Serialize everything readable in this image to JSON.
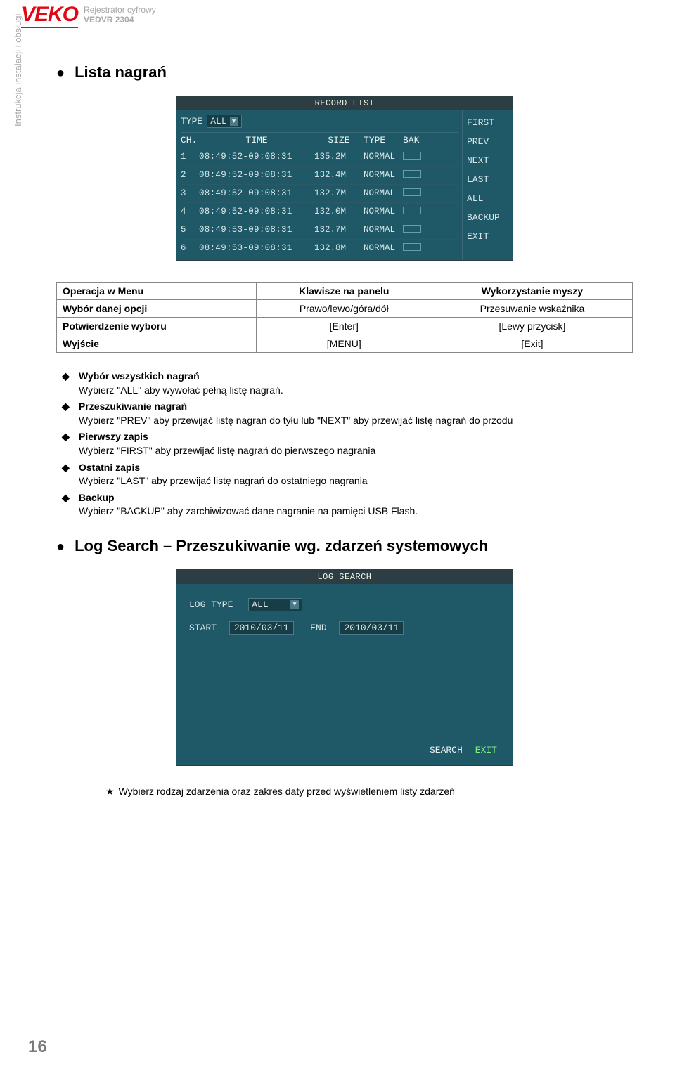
{
  "header": {
    "logo": "VEKO",
    "subtitle": "Rejestrator cyfrowy",
    "model": "VEDVR 2304"
  },
  "sidebar_text": "Instrukcja instalacji i obsługi",
  "section1": {
    "title": "Lista nagrań"
  },
  "record_list": {
    "panel_title": "RECORD LIST",
    "type_label": "TYPE",
    "type_value": "ALL",
    "headers": {
      "ch": "CH.",
      "time": "TIME",
      "size": "SIZE",
      "type": "TYPE",
      "bak": "BAK"
    },
    "rows": [
      {
        "ch": "1",
        "time": "08:49:52-09:08:31",
        "size": "135.2M",
        "type": "NORMAL"
      },
      {
        "ch": "2",
        "time": "08:49:52-09:08:31",
        "size": "132.4M",
        "type": "NORMAL"
      },
      {
        "ch": "3",
        "time": "08:49:52-09:08:31",
        "size": "132.7M",
        "type": "NORMAL"
      },
      {
        "ch": "4",
        "time": "08:49:52-09:08:31",
        "size": "132.0M",
        "type": "NORMAL"
      },
      {
        "ch": "5",
        "time": "08:49:53-09:08:31",
        "size": "132.7M",
        "type": "NORMAL"
      },
      {
        "ch": "6",
        "time": "08:49:53-09:08:31",
        "size": "132.8M",
        "type": "NORMAL"
      }
    ],
    "side": [
      "FIRST",
      "PREV",
      "NEXT",
      "LAST",
      "ALL",
      "BACKUP",
      "EXIT"
    ]
  },
  "menu_table": {
    "h1": "Operacja w Menu",
    "h2": "Klawisze na panelu",
    "h3": "Wykorzystanie myszy",
    "rows": [
      [
        "Wybór danej opcji",
        "Prawo/lewo/góra/dół",
        "Przesuwanie wskaźnika"
      ],
      [
        "Potwierdzenie wyboru",
        "[Enter]",
        "[Lewy przycisk]"
      ],
      [
        "Wyjście",
        "[MENU]",
        "[Exit]"
      ]
    ]
  },
  "desc": [
    {
      "title": "Wybór wszystkich nagrań",
      "body": "Wybierz  \"ALL\" aby wywołać pełną listę nagrań."
    },
    {
      "title": "Przeszukiwanie nagrań",
      "body": "Wybierz  \"PREV\" aby przewijać listę nagrań do tyłu lub \"NEXT\" aby przewijać listę nagrań do przodu"
    },
    {
      "title": "Pierwszy zapis",
      "body": "Wybierz  \"FIRST\" aby przewijać listę nagrań do pierwszego nagrania"
    },
    {
      "title": "Ostatni zapis",
      "body": "Wybierz  \"LAST\" aby przewijać listę nagrań do ostatniego nagrania"
    },
    {
      "title": "Backup",
      "body": "Wybierz  \"BACKUP\" aby zarchiwizować dane nagranie na pamięci USB Flash."
    }
  ],
  "section2": {
    "title": "Log Search – Przeszukiwanie wg. zdarzeń systemowych"
  },
  "log_search": {
    "panel_title": "LOG SEARCH",
    "logtype_label": "LOG TYPE",
    "logtype_value": "ALL",
    "start_label": "START",
    "start_value": "2010/03/11",
    "end_label": "END",
    "end_value": "2010/03/11",
    "btn_search": "SEARCH",
    "btn_exit": "EXIT"
  },
  "note": "Wybierz rodzaj zdarzenia oraz zakres daty przed wyświetleniem listy zdarzeń",
  "page_number": "16"
}
